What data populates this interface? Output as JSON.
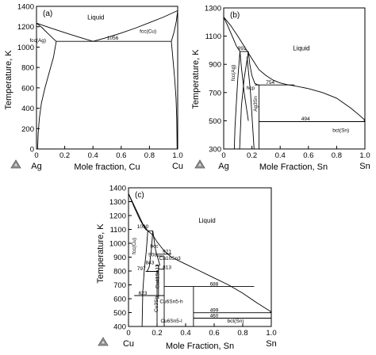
{
  "chart_data": [
    {
      "type": "line",
      "panel_label": "(a)",
      "xlabel": "Mole fraction, Cu",
      "ylabel": "Temperature, K",
      "xlim": [
        0,
        1
      ],
      "ylim": [
        0,
        1400
      ],
      "x_ticks": [
        0,
        0.2,
        0.4,
        0.6,
        0.8,
        1.0
      ],
      "x_tick_labels": [
        "0",
        "0.2",
        "0.4",
        "0.6",
        "0.8",
        "1.0"
      ],
      "y_ticks": [
        0,
        200,
        400,
        600,
        800,
        1000,
        1200,
        1400
      ],
      "y_tick_labels": [
        "0",
        "200",
        "400",
        "600",
        "800",
        "1000",
        "1200",
        "1400"
      ],
      "x_end_labels": [
        "Ag",
        "Cu"
      ],
      "grid": false,
      "series": [
        {
          "x": [
            0,
            0.1,
            0.2,
            0.3,
            0.4
          ],
          "y": [
            1235,
            1188,
            1142,
            1098,
            1056
          ]
        },
        {
          "x": [
            0.4,
            0.5,
            0.6,
            0.7,
            0.8,
            0.9,
            1.0
          ],
          "y": [
            1056,
            1094,
            1138,
            1186,
            1240,
            1295,
            1358
          ]
        },
        {
          "x": [
            0,
            0.04,
            0.08,
            0.12,
            0.14
          ],
          "y": [
            1235,
            1190,
            1135,
            1080,
            1056
          ]
        },
        {
          "x": [
            0.14,
            0.12,
            0.09,
            0.06,
            0.035,
            0.02,
            0.012,
            0.008
          ],
          "y": [
            1056,
            900,
            750,
            600,
            450,
            300,
            150,
            0
          ]
        },
        {
          "x": [
            1.0,
            0.99,
            0.975,
            0.955
          ],
          "y": [
            1358,
            1250,
            1150,
            1056
          ]
        },
        {
          "x": [
            0.955,
            0.965,
            0.978,
            0.988,
            0.993,
            0.996
          ],
          "y": [
            1056,
            900,
            700,
            500,
            300,
            0
          ]
        },
        {
          "x": [
            0.14,
            0.955
          ],
          "y": [
            1056,
            1056
          ]
        }
      ],
      "annotations": [
        {
          "text": "Liquid",
          "x": 0.42,
          "y": 1270
        },
        {
          "text": "fcc(Ag)",
          "x": 0.01,
          "y": 1050
        },
        {
          "text": "fcc(Cu)",
          "x": 0.79,
          "y": 1140
        },
        {
          "text": "1056",
          "x": 0.54,
          "y": 1074
        }
      ]
    },
    {
      "type": "line",
      "panel_label": "(b)",
      "xlabel": "Mole Fraction, Sn",
      "ylabel": "Temperature, K",
      "xlim": [
        0,
        1
      ],
      "ylim": [
        300,
        1300
      ],
      "x_ticks": [
        0,
        0.2,
        0.4,
        0.6,
        0.8,
        1.0
      ],
      "x_tick_labels": [
        "0",
        "0.2",
        "0.4",
        "0.6",
        "0.8",
        "1.0"
      ],
      "y_ticks": [
        300,
        500,
        700,
        900,
        1100,
        1300
      ],
      "y_tick_labels": [
        "300",
        "500",
        "700",
        "900",
        "1100",
        "1300"
      ],
      "x_end_labels": [
        "Ag",
        "Sn"
      ],
      "grid": false,
      "series": [
        {
          "x": [
            0,
            0.05,
            0.1,
            0.15,
            0.2,
            0.25,
            0.3,
            0.35,
            0.4,
            0.45,
            0.5,
            0.6,
            0.7,
            0.8,
            0.9,
            0.96,
            1.0
          ],
          "y": [
            1235,
            1175,
            1100,
            1020,
            940,
            862,
            820,
            788,
            768,
            756,
            748,
            728,
            700,
            660,
            590,
            540,
            505
          ]
        },
        {
          "x": [
            0,
            0.03,
            0.06,
            0.09,
            0.115
          ],
          "y": [
            1235,
            1170,
            1100,
            1030,
            991
          ]
        },
        {
          "x": [
            0.115,
            0.1,
            0.088,
            0.08,
            0.075
          ],
          "y": [
            991,
            800,
            600,
            450,
            300
          ]
        },
        {
          "x": [
            0.115,
            0.125,
            0.145,
            0.175
          ],
          "y": [
            991,
            880,
            700,
            500
          ]
        },
        {
          "x": [
            0.115,
            0.175
          ],
          "y": [
            991,
            991
          ]
        },
        {
          "x": [
            0.175,
            0.145,
            0.125,
            0.113
          ],
          "y": [
            991,
            800,
            600,
            300
          ]
        },
        {
          "x": [
            0.175,
            0.185,
            0.2,
            0.22,
            0.24,
            0.25
          ],
          "y": [
            991,
            900,
            820,
            765,
            755,
            754
          ]
        },
        {
          "x": [
            0.165,
            0.19,
            0.215
          ],
          "y": [
            954,
            700,
            300
          ]
        },
        {
          "x": [
            0.22,
            0.25
          ],
          "y": [
            754,
            754
          ]
        },
        {
          "x": [
            0.25,
            0.25
          ],
          "y": [
            754,
            300
          ]
        },
        {
          "x": [
            0.25,
            0.5
          ],
          "y": [
            754,
            754
          ]
        },
        {
          "x": [
            0.25,
            1.0
          ],
          "y": [
            494,
            494
          ]
        },
        {
          "x": [
            0.99,
            1.0
          ],
          "y": [
            494,
            505
          ]
        }
      ],
      "annotations": [
        {
          "text": "Liquid",
          "x": 0.55,
          "y": 1000
        },
        {
          "text": "991",
          "x": 0.13,
          "y": 1003
        },
        {
          "text": "fcc(Ag)",
          "x": 0.08,
          "y": 840
        },
        {
          "text": "hcp",
          "x": 0.19,
          "y": 720
        },
        {
          "text": "Ag3Sn",
          "x": 0.235,
          "y": 620
        },
        {
          "text": "754",
          "x": 0.33,
          "y": 762
        },
        {
          "text": "494",
          "x": 0.58,
          "y": 502
        },
        {
          "text": "bct(Sn)",
          "x": 0.83,
          "y": 420
        }
      ]
    },
    {
      "type": "line",
      "panel_label": "(c)",
      "xlabel": "Mole Fraction, Sn",
      "ylabel": "Temperature, K",
      "xlim": [
        0,
        1
      ],
      "ylim": [
        400,
        1400
      ],
      "x_ticks": [
        0,
        0.2,
        0.4,
        0.6,
        0.8,
        1.0
      ],
      "x_tick_labels": [
        "0",
        "0.2",
        "0.4",
        "0.6",
        "0.8",
        "1.0"
      ],
      "y_ticks": [
        400,
        500,
        600,
        700,
        800,
        900,
        1000,
        1100,
        1200,
        1300,
        1400
      ],
      "y_tick_labels": [
        "400",
        "500",
        "600",
        "700",
        "800",
        "900",
        "1000",
        "1100",
        "1200",
        "1300",
        "1400"
      ],
      "x_end_labels": [
        "Cu",
        "Sn"
      ],
      "grid": false,
      "series": [
        {
          "x": [
            0,
            0.05,
            0.1,
            0.135,
            0.17,
            0.2,
            0.25,
            0.3,
            0.4,
            0.5,
            0.6,
            0.7,
            0.8,
            0.9,
            1.0
          ],
          "y": [
            1358,
            1250,
            1140,
            1090,
            1060,
            1010,
            945,
            900,
            850,
            800,
            750,
            700,
            640,
            570,
            505
          ]
        },
        {
          "x": [
            0,
            0.04,
            0.08,
            0.12,
            0.135
          ],
          "y": [
            1358,
            1260,
            1170,
            1100,
            1090
          ]
        },
        {
          "x": [
            0.135,
            0.125,
            0.11,
            0.1,
            0.095
          ],
          "y": [
            1090,
            950,
            800,
            650,
            400
          ]
        },
        {
          "x": [
            0.135,
            0.17
          ],
          "y": [
            1090,
            1090
          ]
        },
        {
          "x": [
            0.17,
            0.16,
            0.145,
            0.13
          ],
          "y": [
            1090,
            950,
            830,
            797
          ]
        },
        {
          "x": [
            0.17,
            0.19,
            0.22
          ],
          "y": [
            1090,
            950,
            840
          ]
        },
        {
          "x": [
            0.2,
            0.3
          ],
          "y": [
            921,
            921
          ]
        },
        {
          "x": [
            0.12,
            0.21
          ],
          "y": [
            797,
            797
          ]
        },
        {
          "x": [
            0.19,
            0.21
          ],
          "y": [
            843,
            843
          ]
        },
        {
          "x": [
            0.21,
            0.25
          ],
          "y": [
            813,
            813
          ]
        },
        {
          "x": [
            0.2,
            0.25
          ],
          "y": [
            908,
            908
          ]
        },
        {
          "x": [
            0.04,
            0.25
          ],
          "y": [
            623,
            623
          ]
        },
        {
          "x": [
            0.25,
            0.88
          ],
          "y": [
            688,
            688
          ]
        },
        {
          "x": [
            0.25,
            0.25
          ],
          "y": [
            908,
            400
          ]
        },
        {
          "x": [
            0.2,
            0.2
          ],
          "y": [
            797,
            400
          ]
        },
        {
          "x": [
            0.21,
            0.21
          ],
          "y": [
            843,
            600
          ]
        },
        {
          "x": [
            0.455,
            0.455
          ],
          "y": [
            688,
            400
          ]
        },
        {
          "x": [
            0.455,
            1.0
          ],
          "y": [
            499,
            499
          ]
        },
        {
          "x": [
            0.455,
            1.0
          ],
          "y": [
            460,
            460
          ]
        },
        {
          "x": [
            0.99,
            1.0
          ],
          "y": [
            499,
            505
          ]
        }
      ],
      "annotations": [
        {
          "text": "Liquid",
          "x": 0.55,
          "y": 1150
        },
        {
          "text": "1090",
          "x": 0.1,
          "y": 1110
        },
        {
          "text": "fcc(Cu)",
          "x": 0.05,
          "y": 980
        },
        {
          "text": "bcc",
          "x": 0.18,
          "y": 970
        },
        {
          "text": "921",
          "x": 0.27,
          "y": 928
        },
        {
          "text": "908",
          "x": 0.17,
          "y": 905
        },
        {
          "text": "Cu10Sn3",
          "x": 0.29,
          "y": 880
        },
        {
          "text": "843",
          "x": 0.15,
          "y": 850
        },
        {
          "text": "813",
          "x": 0.27,
          "y": 815
        },
        {
          "text": "797",
          "x": 0.09,
          "y": 805
        },
        {
          "text": "Cu41Sn11",
          "x": 0.215,
          "y": 760
        },
        {
          "text": "688",
          "x": 0.6,
          "y": 695
        },
        {
          "text": "623",
          "x": 0.1,
          "y": 628
        },
        {
          "text": "Cu3Sn",
          "x": 0.205,
          "y": 560
        },
        {
          "text": "Cu6Sn5-h",
          "x": 0.3,
          "y": 570
        },
        {
          "text": "499",
          "x": 0.6,
          "y": 507
        },
        {
          "text": "460",
          "x": 0.6,
          "y": 467
        },
        {
          "text": "Cu6Sn5-l",
          "x": 0.3,
          "y": 430
        },
        {
          "text": "bct(Sn)",
          "x": 0.75,
          "y": 430
        }
      ]
    }
  ],
  "logo": {
    "name": "thermo-calc-logo-icon"
  }
}
